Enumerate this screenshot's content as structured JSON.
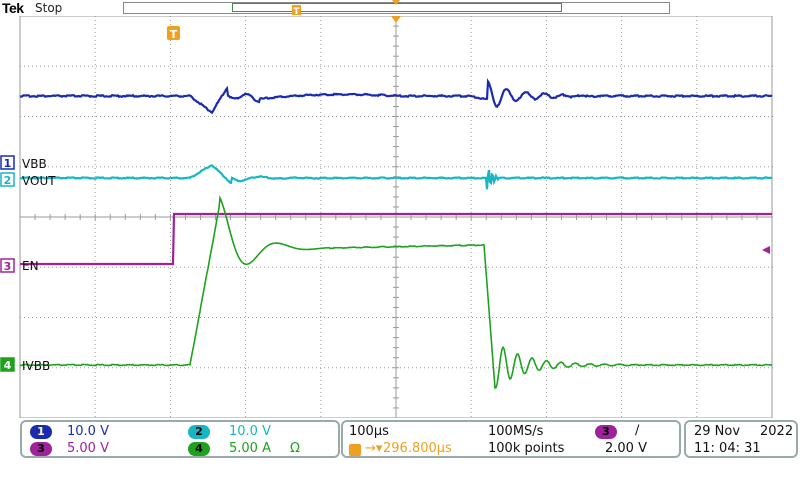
{
  "header": {
    "brand": "Tek",
    "acq_state": "Stop"
  },
  "channels": [
    {
      "num": "1",
      "label": "VBB",
      "scale": "10.0 V",
      "color": "#1b2bb0"
    },
    {
      "num": "2",
      "label": "VOUT",
      "scale": "10.0 V",
      "color": "#17b6c4"
    },
    {
      "num": "3",
      "label": "EN",
      "scale": "5.00 V",
      "color": "#a0229a"
    },
    {
      "num": "4",
      "label": "IVBB",
      "scale": "5.00 A",
      "color": "#1ea21e",
      "unit_symbol": "Ω"
    }
  ],
  "timebase": {
    "per_div": "100µs",
    "trigger_pos": "296.800µs",
    "sample_rate": "100MS/s",
    "record": "100k points"
  },
  "trigger": {
    "source": "3",
    "slope": "∕",
    "level": "2.00 V"
  },
  "datetime": {
    "date_day": "29 Nov",
    "year": "2022",
    "time": "11: 04: 31"
  },
  "colors": {
    "grid": "#9a9a9a",
    "trigger_marker": "#f0a020",
    "panel_border": "#9aa8aa"
  }
}
